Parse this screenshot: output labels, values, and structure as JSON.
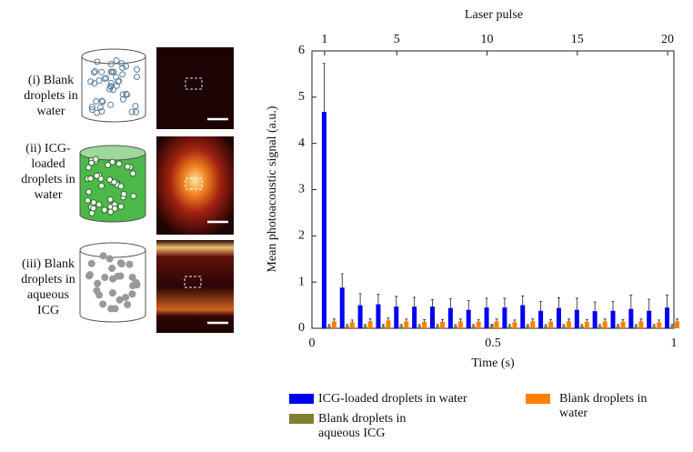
{
  "panels": [
    {
      "label": "(i) Blank droplets in water"
    },
    {
      "label": "(ii) ICG-loaded droplets in water"
    },
    {
      "label": "(iii) Blank droplets in aqueous ICG"
    }
  ],
  "chart_data": {
    "type": "bar",
    "x2label": "Laser pulse",
    "xlabel": "Time (s)",
    "ylabel": "Mean photoacoustic signal (a.u.)",
    "x": [
      1,
      2,
      3,
      4,
      5,
      6,
      7,
      8,
      9,
      10,
      11,
      12,
      13,
      14,
      15,
      16,
      17,
      18,
      19,
      20
    ],
    "x2lim": [
      0.3,
      20.35
    ],
    "x2ticks": [
      1,
      5,
      10,
      15,
      20
    ],
    "xlim": [
      0,
      1
    ],
    "xticks": [
      0,
      0.5,
      1
    ],
    "ylim": [
      0,
      6
    ],
    "yticks": [
      0,
      1,
      2,
      3,
      4,
      5,
      6
    ],
    "series": [
      {
        "name": "ICG-loaded droplets in water",
        "color": "#0000ee",
        "values": [
          4.68,
          0.88,
          0.5,
          0.52,
          0.47,
          0.47,
          0.47,
          0.44,
          0.4,
          0.45,
          0.45,
          0.5,
          0.38,
          0.44,
          0.4,
          0.37,
          0.38,
          0.42,
          0.38,
          0.45
        ],
        "errors": [
          1.05,
          0.3,
          0.25,
          0.22,
          0.22,
          0.2,
          0.15,
          0.2,
          0.2,
          0.2,
          0.2,
          0.2,
          0.2,
          0.22,
          0.25,
          0.2,
          0.2,
          0.3,
          0.25,
          0.27
        ]
      },
      {
        "name": "Blank droplets in aqueous ICG",
        "color": "#7f7f30",
        "values": [
          0.05,
          0.05,
          0.05,
          0.05,
          0.05,
          0.05,
          0.05,
          0.05,
          0.05,
          0.05,
          0.05,
          0.05,
          0.05,
          0.05,
          0.05,
          0.05,
          0.05,
          0.05,
          0.05,
          0.05
        ],
        "errors": [
          0.03,
          0.03,
          0.03,
          0.03,
          0.03,
          0.03,
          0.03,
          0.03,
          0.03,
          0.03,
          0.03,
          0.03,
          0.03,
          0.03,
          0.03,
          0.03,
          0.03,
          0.03,
          0.03,
          0.03
        ]
      },
      {
        "name": "Blank droplets in water",
        "color": "#ff8000",
        "values": [
          0.15,
          0.13,
          0.15,
          0.17,
          0.15,
          0.14,
          0.14,
          0.15,
          0.14,
          0.15,
          0.13,
          0.15,
          0.14,
          0.15,
          0.14,
          0.15,
          0.14,
          0.15,
          0.13,
          0.15
        ],
        "errors": [
          0.05,
          0.05,
          0.05,
          0.05,
          0.05,
          0.05,
          0.05,
          0.05,
          0.05,
          0.05,
          0.05,
          0.05,
          0.05,
          0.05,
          0.05,
          0.05,
          0.05,
          0.05,
          0.05,
          0.05
        ]
      }
    ],
    "legend": "bottom"
  }
}
